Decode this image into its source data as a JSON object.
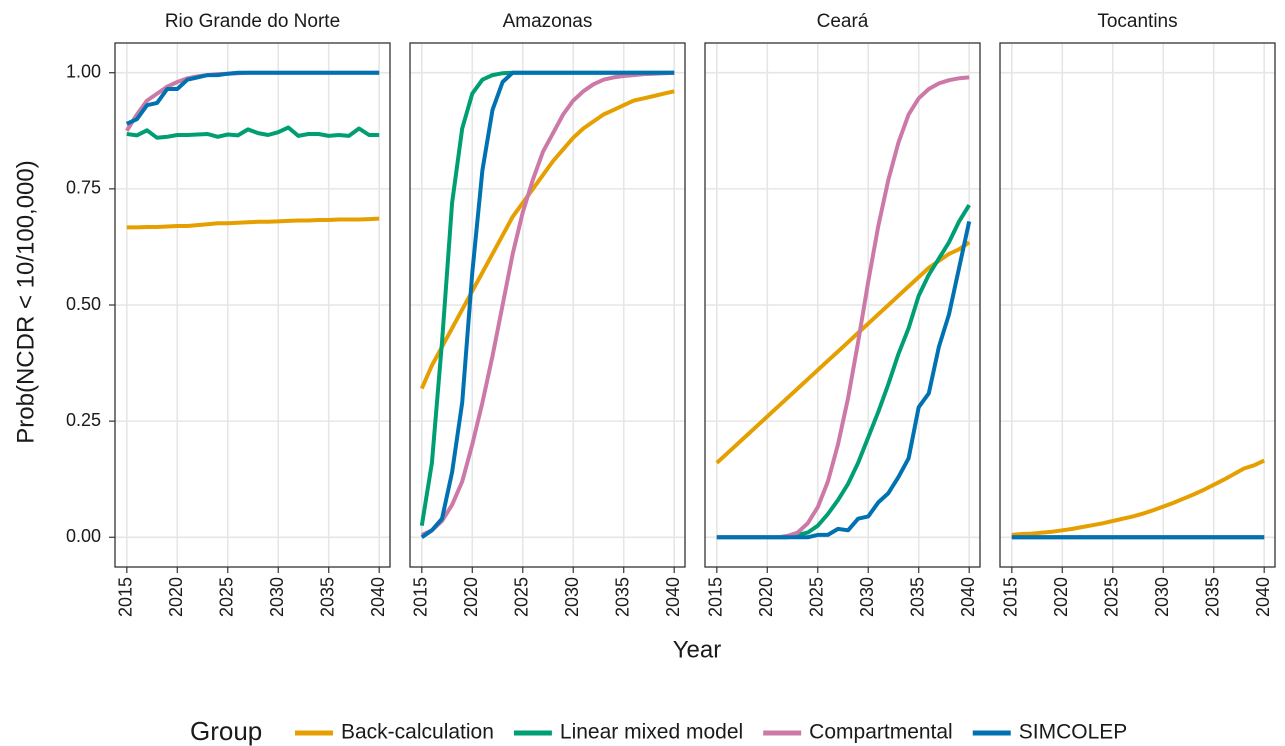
{
  "ylabel": "Prob(NCDR < 10/100,000)",
  "xlabel": "Year",
  "legend": {
    "title": "Group",
    "position": "bottom"
  },
  "chart_data": [
    {
      "type": "line",
      "title": "Rio Grande do Norte",
      "grid": true,
      "x": [
        2015,
        2016,
        2017,
        2018,
        2019,
        2020,
        2021,
        2022,
        2023,
        2024,
        2025,
        2026,
        2027,
        2028,
        2029,
        2030,
        2031,
        2032,
        2033,
        2034,
        2035,
        2036,
        2037,
        2038,
        2039,
        2040
      ],
      "xlim": [
        2013.83,
        2041.07
      ],
      "ylim": [
        -0.064,
        1.064
      ],
      "xticks": [
        2015,
        2020,
        2025,
        2030,
        2035,
        2040
      ],
      "yticks": [
        {
          "value": 0,
          "label": "0.00"
        },
        {
          "value": 0.25,
          "label": "0.25"
        },
        {
          "value": 0.5,
          "label": "0.50"
        },
        {
          "value": 0.75,
          "label": "0.75"
        },
        {
          "value": 1,
          "label": "1.00"
        }
      ],
      "series": [
        {
          "name": "Back-calculation",
          "color": "#E69F00",
          "values": [
            0.667,
            0.667,
            0.668,
            0.668,
            0.669,
            0.67,
            0.67,
            0.672,
            0.674,
            0.676,
            0.676,
            0.677,
            0.678,
            0.679,
            0.679,
            0.68,
            0.681,
            0.682,
            0.682,
            0.683,
            0.683,
            0.684,
            0.684,
            0.684,
            0.685,
            0.686
          ]
        },
        {
          "name": "Linear mixed model",
          "color": "#009E73",
          "values": [
            0.868,
            0.865,
            0.876,
            0.86,
            0.862,
            0.866,
            0.866,
            0.867,
            0.868,
            0.862,
            0.867,
            0.865,
            0.878,
            0.87,
            0.866,
            0.872,
            0.882,
            0.864,
            0.868,
            0.868,
            0.864,
            0.866,
            0.864,
            0.88,
            0.866,
            0.866
          ]
        },
        {
          "name": "Compartmental",
          "color": "#CC79A7",
          "values": [
            0.875,
            0.91,
            0.94,
            0.955,
            0.97,
            0.98,
            0.988,
            0.992,
            0.995,
            0.997,
            0.998,
            0.999,
            1,
            1,
            1,
            1,
            1,
            1,
            1,
            1,
            1,
            1,
            1,
            1,
            1,
            1
          ]
        },
        {
          "name": "SIMCOLEP",
          "color": "#0072B2",
          "values": [
            0.89,
            0.9,
            0.93,
            0.935,
            0.965,
            0.965,
            0.985,
            0.99,
            0.995,
            0.995,
            0.998,
            1,
            1,
            1,
            1,
            1,
            1,
            1,
            1,
            1,
            1,
            1,
            1,
            1,
            1,
            1
          ]
        }
      ]
    },
    {
      "type": "line",
      "title": "Amazonas",
      "grid": true,
      "x": [
        2015,
        2016,
        2017,
        2018,
        2019,
        2020,
        2021,
        2022,
        2023,
        2024,
        2025,
        2026,
        2027,
        2028,
        2029,
        2030,
        2031,
        2032,
        2033,
        2034,
        2035,
        2036,
        2037,
        2038,
        2039,
        2040
      ],
      "xlim": [
        2013.83,
        2041.07
      ],
      "ylim": [
        -0.064,
        1.064
      ],
      "xticks": [
        2015,
        2020,
        2025,
        2030,
        2035,
        2040
      ],
      "yticks": [
        0,
        0.25,
        0.5,
        0.75,
        1
      ],
      "series": [
        {
          "name": "Back-calculation",
          "color": "#E69F00",
          "values": [
            0.32,
            0.37,
            0.41,
            0.45,
            0.49,
            0.53,
            0.57,
            0.61,
            0.65,
            0.69,
            0.72,
            0.75,
            0.78,
            0.81,
            0.835,
            0.86,
            0.88,
            0.895,
            0.91,
            0.92,
            0.93,
            0.94,
            0.945,
            0.95,
            0.955,
            0.96
          ]
        },
        {
          "name": "Linear mixed model",
          "color": "#009E73",
          "values": [
            0.025,
            0.16,
            0.42,
            0.72,
            0.88,
            0.955,
            0.985,
            0.995,
            0.999,
            1,
            1,
            1,
            1,
            1,
            1,
            1,
            1,
            1,
            1,
            1,
            1,
            1,
            1,
            1,
            1,
            1
          ]
        },
        {
          "name": "Compartmental",
          "color": "#CC79A7",
          "values": [
            0.005,
            0.015,
            0.035,
            0.07,
            0.12,
            0.2,
            0.29,
            0.39,
            0.5,
            0.61,
            0.7,
            0.77,
            0.83,
            0.87,
            0.91,
            0.94,
            0.96,
            0.975,
            0.985,
            0.99,
            0.993,
            0.995,
            0.997,
            0.998,
            0.999,
            1
          ]
        },
        {
          "name": "SIMCOLEP",
          "color": "#0072B2",
          "values": [
            0,
            0.015,
            0.04,
            0.14,
            0.29,
            0.57,
            0.79,
            0.92,
            0.98,
            1,
            1,
            1,
            1,
            1,
            1,
            1,
            1,
            1,
            1,
            1,
            1,
            1,
            1,
            1,
            1,
            1
          ]
        }
      ]
    },
    {
      "type": "line",
      "title": "Ceará",
      "grid": true,
      "x": [
        2015,
        2016,
        2017,
        2018,
        2019,
        2020,
        2021,
        2022,
        2023,
        2024,
        2025,
        2026,
        2027,
        2028,
        2029,
        2030,
        2031,
        2032,
        2033,
        2034,
        2035,
        2036,
        2037,
        2038,
        2039,
        2040
      ],
      "xlim": [
        2013.83,
        2041.07
      ],
      "ylim": [
        -0.064,
        1.064
      ],
      "xticks": [
        2015,
        2020,
        2025,
        2030,
        2035,
        2040
      ],
      "yticks": [
        0,
        0.25,
        0.5,
        0.75,
        1
      ],
      "series": [
        {
          "name": "Back-calculation",
          "color": "#E69F00",
          "values": [
            0.16,
            0.18,
            0.2,
            0.22,
            0.24,
            0.26,
            0.28,
            0.3,
            0.32,
            0.34,
            0.36,
            0.38,
            0.4,
            0.42,
            0.44,
            0.46,
            0.48,
            0.5,
            0.52,
            0.54,
            0.56,
            0.58,
            0.595,
            0.61,
            0.62,
            0.635
          ]
        },
        {
          "name": "Linear mixed model",
          "color": "#009E73",
          "values": [
            0,
            0,
            0,
            0,
            0,
            0,
            0,
            0,
            0.005,
            0.01,
            0.025,
            0.05,
            0.08,
            0.115,
            0.16,
            0.215,
            0.27,
            0.33,
            0.395,
            0.45,
            0.52,
            0.565,
            0.6,
            0.635,
            0.68,
            0.715
          ]
        },
        {
          "name": "Compartmental",
          "color": "#CC79A7",
          "values": [
            0,
            0,
            0,
            0,
            0,
            0,
            0,
            0.003,
            0.01,
            0.03,
            0.065,
            0.12,
            0.2,
            0.3,
            0.42,
            0.55,
            0.67,
            0.77,
            0.85,
            0.91,
            0.945,
            0.965,
            0.977,
            0.984,
            0.988,
            0.99
          ]
        },
        {
          "name": "SIMCOLEP",
          "color": "#0072B2",
          "values": [
            0,
            0,
            0,
            0,
            0,
            0,
            0,
            0,
            0,
            0,
            0.005,
            0.005,
            0.018,
            0.015,
            0.04,
            0.045,
            0.075,
            0.095,
            0.13,
            0.17,
            0.28,
            0.31,
            0.41,
            0.48,
            0.58,
            0.68
          ]
        }
      ]
    },
    {
      "type": "line",
      "title": "Tocantins",
      "grid": true,
      "x": [
        2015,
        2016,
        2017,
        2018,
        2019,
        2020,
        2021,
        2022,
        2023,
        2024,
        2025,
        2026,
        2027,
        2028,
        2029,
        2030,
        2031,
        2032,
        2033,
        2034,
        2035,
        2036,
        2037,
        2038,
        2039,
        2040
      ],
      "xlim": [
        2013.83,
        2041.07
      ],
      "ylim": [
        -0.064,
        1.064
      ],
      "xticks": [
        2015,
        2020,
        2025,
        2030,
        2035,
        2040
      ],
      "yticks": [
        0,
        0.25,
        0.5,
        0.75,
        1
      ],
      "series": [
        {
          "name": "Back-calculation",
          "color": "#E69F00",
          "values": [
            0.005,
            0.007,
            0.008,
            0.01,
            0.012,
            0.015,
            0.018,
            0.022,
            0.026,
            0.03,
            0.035,
            0.04,
            0.045,
            0.051,
            0.058,
            0.066,
            0.074,
            0.083,
            0.092,
            0.102,
            0.113,
            0.124,
            0.136,
            0.148,
            0.155,
            0.165
          ]
        },
        {
          "name": "Linear mixed model",
          "color": "#009E73",
          "values": [
            0,
            0,
            0,
            0,
            0,
            0,
            0,
            0,
            0,
            0,
            0,
            0,
            0,
            0,
            0,
            0,
            0,
            0,
            0,
            0,
            0,
            0,
            0,
            0,
            0,
            0
          ]
        },
        {
          "name": "Compartmental",
          "color": "#CC79A7",
          "values": [
            0,
            0,
            0,
            0,
            0,
            0,
            0,
            0,
            0,
            0,
            0,
            0,
            0,
            0,
            0,
            0,
            0,
            0,
            0,
            0,
            0,
            0,
            0,
            0,
            0,
            0
          ]
        },
        {
          "name": "SIMCOLEP",
          "color": "#0072B2",
          "values": [
            0,
            0,
            0,
            0,
            0,
            0,
            0,
            0,
            0,
            0,
            0,
            0,
            0,
            0,
            0,
            0,
            0,
            0,
            0,
            0,
            0,
            0,
            0,
            0,
            0,
            0
          ]
        }
      ]
    }
  ]
}
